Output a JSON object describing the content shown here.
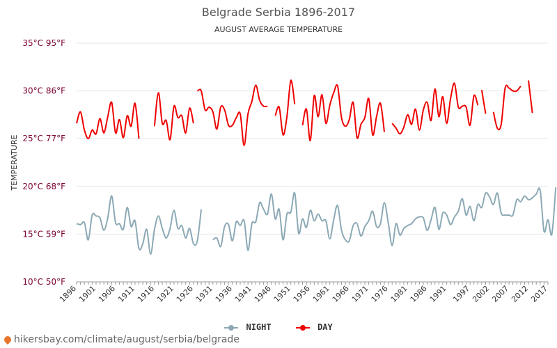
{
  "colors": {
    "night": "#8ca9b5",
    "day": "#ee0000",
    "grid": "#e6e6e6",
    "axis_text": "#7a0032",
    "year_text": "#333333"
  },
  "footer": {
    "text": "hikersbay.com/climate/august/serbia/belgrade",
    "icon": "map-pin-icon"
  },
  "chart_data": {
    "type": "line",
    "title": "Belgrade Serbia 1896-2017",
    "subtitle": "AUGUST AVERAGE TEMPERATURE",
    "ylabel": "TEMPERATURE",
    "ylim": [
      10,
      35
    ],
    "y_ticks": [
      {
        "value": 35,
        "label": "35°C 95°F"
      },
      {
        "value": 30,
        "label": "30°C 86°F"
      },
      {
        "value": 25,
        "label": "25°C 77°F"
      },
      {
        "value": 20,
        "label": "20°C 68°F"
      },
      {
        "value": 15,
        "label": "15°C 59°F"
      },
      {
        "value": 10,
        "label": "10°C 50°F"
      }
    ],
    "xlim": [
      1896,
      2017
    ],
    "x_tick_labels": [
      "1896",
      "1901",
      "1906",
      "1911",
      "1916",
      "1921",
      "1926",
      "1931",
      "1936",
      "1941",
      "1946",
      "1951",
      "1956",
      "1961",
      "1966",
      "1971",
      "1976",
      "1981",
      "1986",
      "1991",
      "1997",
      "2002",
      "2007",
      "2012",
      "2017"
    ],
    "legend": {
      "position": "bottom",
      "items": [
        "NIGHT",
        "DAY"
      ]
    },
    "grid": true,
    "series": [
      {
        "name": "NIGHT",
        "segments": [
          {
            "start": 1896,
            "values": [
              16.1,
              16.0,
              16.2,
              14.4,
              17.0,
              16.9,
              16.7,
              15.4,
              16.7,
              19.0,
              16.2,
              16.1,
              15.5,
              17.8,
              15.8,
              16.4,
              13.5,
              14.0,
              15.5,
              12.9,
              15.5,
              16.9,
              15.6,
              14.6,
              15.6,
              17.5,
              15.6,
              15.9,
              14.6,
              15.6,
              14.0,
              14.3,
              17.6
            ]
          },
          {
            "start": 1931,
            "values": [
              14.4,
              14.6,
              13.7,
              15.8,
              16.0,
              14.3,
              16.3,
              15.9,
              16.4,
              13.3,
              16.1,
              16.3,
              18.3,
              17.6,
              17.1,
              19.2,
              16.6,
              17.6,
              14.4,
              17.1,
              17.3,
              19.3,
              15.1,
              16.6,
              15.7,
              17.5,
              16.4,
              17.1,
              16.4,
              16.4,
              14.5,
              16.5,
              18.0,
              15.4,
              14.4,
              14.3,
              15.9,
              16.1,
              14.8,
              15.8,
              16.4,
              17.4,
              15.8,
              16.1,
              18.3,
              16.2,
              13.8,
              16.1,
              14.9,
              15.6,
              15.9,
              16.1,
              16.6,
              16.8,
              16.7,
              15.4,
              16.5,
              17.8,
              15.5,
              17.2,
              17.0,
              16.0,
              16.8,
              17.4,
              18.7,
              17.0,
              17.9,
              16.4,
              18.1,
              17.8,
              19.3,
              18.9,
              18.1,
              19.3,
              17.2,
              17.0,
              17.0,
              17.0,
              18.6,
              18.4,
              19.0,
              18.6,
              18.8,
              19.2,
              19.6,
              15.3,
              16.5,
              15.0,
              19.9
            ]
          }
        ]
      },
      {
        "name": "DAY",
        "segments": [
          {
            "start": 1896,
            "values": [
              26.6,
              27.8,
              25.9,
              25.0,
              25.9,
              25.5,
              27.1,
              25.6,
              27.3,
              28.8,
              25.6,
              27.0,
              25.1,
              27.4,
              26.3,
              28.7,
              25.0
            ]
          },
          {
            "start": 1916,
            "values": [
              26.3,
              29.8,
              26.6,
              26.9,
              24.9,
              28.4,
              27.2,
              27.4,
              25.6,
              28.2,
              26.6
            ]
          },
          {
            "start": 1927,
            "values": [
              30.0,
              30.0,
              28.0,
              28.3,
              27.8,
              26.0,
              28.3,
              28.0,
              26.4,
              26.4,
              27.2,
              27.6,
              24.3,
              27.6,
              28.9,
              30.6,
              29.0,
              28.4,
              28.4
            ]
          },
          {
            "start": 1947,
            "values": [
              27.4,
              28.3,
              25.4,
              27.3,
              31.1,
              28.6
            ]
          },
          {
            "start": 1954,
            "values": [
              26.4,
              28.1,
              24.8,
              29.5,
              27.3,
              29.6,
              26.6,
              28.5,
              29.8,
              30.5,
              27.2,
              26.3,
              27.0,
              28.8,
              25.1,
              26.5,
              27.2,
              29.2,
              25.4,
              27.3,
              28.7,
              25.7
            ]
          },
          {
            "start": 1977,
            "values": [
              26.6,
              26.1,
              25.5,
              26.2,
              27.5,
              26.5,
              28.1,
              25.9,
              28.0,
              28.8,
              26.9,
              30.2,
              27.3,
              29.4,
              26.6,
              29.2,
              30.8,
              28.3,
              28.4,
              28.3,
              26.4,
              29.5,
              28.5
            ]
          },
          {
            "start": 2000,
            "values": [
              30.1,
              27.6
            ]
          },
          {
            "start": 2003,
            "values": [
              27.8,
              26.1,
              26.5,
              30.3,
              30.3,
              30.0,
              30.0,
              30.5
            ]
          },
          {
            "start": 2012,
            "values": [
              31.1,
              27.7
            ]
          }
        ]
      }
    ]
  }
}
